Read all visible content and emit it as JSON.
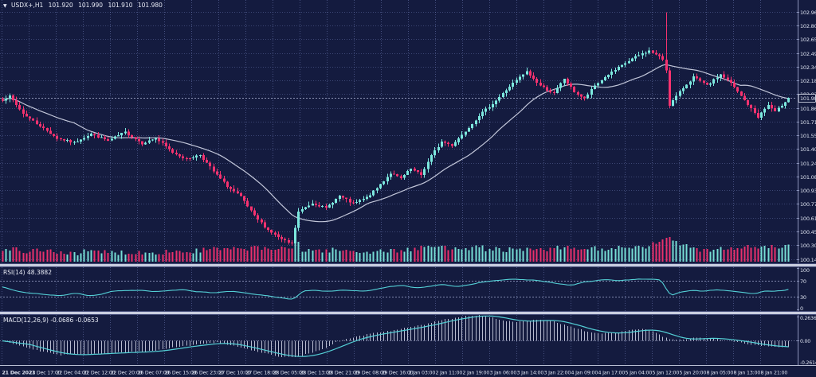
{
  "header": {
    "collapse_icon": "▼",
    "symbol": "USDX+,H1",
    "open": "101.920",
    "high": "101.990",
    "low": "101.910",
    "close": "101.980"
  },
  "panels": {
    "rsi": {
      "label": "RSI(14) 48.3882"
    },
    "macd": {
      "label": "MACD(12,26,9) -0.0686 -0.0653"
    }
  },
  "colors": {
    "background": "#141b3f",
    "grid": "#6e7ab4",
    "bull": "#7ce8de",
    "bear": "#f6326f",
    "ma_line": "#c2c6d9",
    "indicator_line": "#54d0d6",
    "histogram": "#c9cde0",
    "text": "#dde2f0",
    "axis_line": "#8a92b8",
    "level_line": "#9aa2c8",
    "bid_line": "#a9b0cf",
    "price_box_border": "#e8ecf8",
    "price_box_bg": "#141b3f"
  },
  "chart_data": [
    {
      "type": "candlestick",
      "name": "USDX+",
      "timeframe": "H1",
      "ohlc_last": {
        "open": 101.92,
        "high": 101.99,
        "low": 101.91,
        "close": 101.98
      },
      "current_price": 101.98,
      "current_price_label": "101.980",
      "ylim": [
        100.09,
        103.1
      ],
      "y_ticks": [
        "102.960",
        "102.805",
        "102.650",
        "102.495",
        "102.340",
        "102.180",
        "102.025",
        "101.865",
        "101.710",
        "101.555",
        "101.400",
        "101.240",
        "101.085",
        "100.930",
        "100.770",
        "100.610",
        "100.455",
        "100.300",
        "100.140"
      ],
      "x_labels": [
        "21 Dec 2023",
        "21 Dec 17:00",
        "22 Dec 04:00",
        "22 Dec 12:00",
        "22 Dec 20:00",
        "26 Dec 07:00",
        "26 Dec 15:00",
        "26 Dec 23:00",
        "27 Dec 10:00",
        "27 Dec 18:00",
        "28 Dec 05:00",
        "28 Dec 13:00",
        "28 Dec 21:00",
        "29 Dec 08:00",
        "29 Dec 16:00",
        "2 Jan 03:00",
        "2 Jan 11:00",
        "2 Jan 19:00",
        "3 Jan 06:00",
        "3 Jan 14:00",
        "3 Jan 22:00",
        "4 Jan 09:00",
        "4 Jan 17:00",
        "5 Jan 04:00",
        "5 Jan 12:00",
        "5 Jan 20:00",
        "8 Jan 05:00",
        "8 Jan 13:00",
        "8 Jan 21:00"
      ],
      "candles": 232,
      "ma_period": 22,
      "close_keypoints": [
        [
          0,
          101.96
        ],
        [
          2,
          102.0
        ],
        [
          6,
          101.8
        ],
        [
          11,
          101.66
        ],
        [
          16,
          101.52
        ],
        [
          21,
          101.47
        ],
        [
          26,
          101.57
        ],
        [
          31,
          101.49
        ],
        [
          36,
          101.59
        ],
        [
          41,
          101.46
        ],
        [
          45,
          101.52
        ],
        [
          50,
          101.36
        ],
        [
          54,
          101.28
        ],
        [
          58,
          101.33
        ],
        [
          62,
          101.14
        ],
        [
          66,
          100.97
        ],
        [
          70,
          100.85
        ],
        [
          74,
          100.63
        ],
        [
          78,
          100.47
        ],
        [
          82,
          100.36
        ],
        [
          85,
          100.31
        ],
        [
          87,
          100.68
        ],
        [
          91,
          100.78
        ],
        [
          95,
          100.72
        ],
        [
          99,
          100.86
        ],
        [
          103,
          100.77
        ],
        [
          107,
          100.84
        ],
        [
          110,
          100.95
        ],
        [
          114,
          101.12
        ],
        [
          117,
          101.06
        ],
        [
          120,
          101.17
        ],
        [
          123,
          101.1
        ],
        [
          126,
          101.32
        ],
        [
          129,
          101.48
        ],
        [
          132,
          101.44
        ],
        [
          136,
          101.6
        ],
        [
          140,
          101.78
        ],
        [
          145,
          101.95
        ],
        [
          150,
          102.15
        ],
        [
          154,
          102.28
        ],
        [
          158,
          102.12
        ],
        [
          162,
          102.03
        ],
        [
          165,
          102.2
        ],
        [
          168,
          102.05
        ],
        [
          171,
          101.97
        ],
        [
          174,
          102.12
        ],
        [
          178,
          102.25
        ],
        [
          182,
          102.35
        ],
        [
          186,
          102.45
        ],
        [
          190,
          102.52
        ],
        [
          193,
          102.45
        ],
        [
          194,
          102.42
        ],
        [
          195,
          102.3
        ],
        [
          196,
          101.9
        ],
        [
          199,
          102.05
        ],
        [
          203,
          102.22
        ],
        [
          207,
          102.12
        ],
        [
          211,
          102.25
        ],
        [
          214,
          102.15
        ],
        [
          217,
          102.0
        ],
        [
          222,
          101.76
        ],
        [
          225,
          101.9
        ],
        [
          227,
          101.82
        ],
        [
          229,
          101.9
        ],
        [
          231,
          101.98
        ]
      ],
      "spike": {
        "index": 195,
        "high": 102.96
      },
      "volume_profile_keypoints": [
        [
          0,
          0.35
        ],
        [
          40,
          0.25
        ],
        [
          80,
          0.5
        ],
        [
          110,
          0.3
        ],
        [
          132,
          0.6
        ],
        [
          150,
          0.35
        ],
        [
          165,
          0.45
        ],
        [
          185,
          0.5
        ],
        [
          196,
          1.0
        ],
        [
          205,
          0.45
        ],
        [
          215,
          0.5
        ],
        [
          231,
          0.55
        ]
      ]
    },
    {
      "type": "line",
      "name": "RSI(14)",
      "last_value": 48.3882,
      "levels": [
        70,
        30
      ],
      "y_ticks": [
        "100",
        "70",
        "30",
        "0"
      ],
      "ylim": [
        0,
        100
      ],
      "keypoints": [
        [
          0,
          55
        ],
        [
          4,
          46
        ],
        [
          8,
          39
        ],
        [
          13,
          36
        ],
        [
          17,
          33
        ],
        [
          22,
          40
        ],
        [
          25,
          33
        ],
        [
          29,
          37
        ],
        [
          33,
          45
        ],
        [
          37,
          46
        ],
        [
          41,
          47
        ],
        [
          45,
          43
        ],
        [
          49,
          46
        ],
        [
          52,
          48
        ],
        [
          56,
          44
        ],
        [
          60,
          42
        ],
        [
          63,
          40
        ],
        [
          67,
          44
        ],
        [
          70,
          41
        ],
        [
          74,
          36
        ],
        [
          78,
          33
        ],
        [
          81,
          29
        ],
        [
          84,
          26
        ],
        [
          86,
          25
        ],
        [
          88,
          44
        ],
        [
          92,
          46
        ],
        [
          96,
          44
        ],
        [
          100,
          47
        ],
        [
          104,
          44
        ],
        [
          108,
          46
        ],
        [
          111,
          50
        ],
        [
          115,
          56
        ],
        [
          118,
          58
        ],
        [
          122,
          52
        ],
        [
          126,
          57
        ],
        [
          129,
          60
        ],
        [
          133,
          55
        ],
        [
          137,
          59
        ],
        [
          141,
          66
        ],
        [
          146,
          70
        ],
        [
          149,
          73
        ],
        [
          153,
          72
        ],
        [
          157,
          70
        ],
        [
          160,
          66
        ],
        [
          164,
          62
        ],
        [
          167,
          58
        ],
        [
          171,
          66
        ],
        [
          175,
          70
        ],
        [
          179,
          72
        ],
        [
          181,
          69
        ],
        [
          184,
          72
        ],
        [
          188,
          73
        ],
        [
          192,
          73
        ],
        [
          194,
          71
        ],
        [
          196,
          32
        ],
        [
          199,
          41
        ],
        [
          203,
          46
        ],
        [
          206,
          44
        ],
        [
          210,
          48
        ],
        [
          213,
          46
        ],
        [
          217,
          42
        ],
        [
          221,
          38
        ],
        [
          224,
          45
        ],
        [
          226,
          42
        ],
        [
          229,
          45
        ],
        [
          231,
          48
        ]
      ]
    },
    {
      "type": "macd",
      "name": "MACD(12,26,9)",
      "last_macd": -0.0686,
      "last_signal": -0.0653,
      "signal_period": 9,
      "y_ticks": [
        "0.2636",
        "0.00",
        "-0.2614"
      ],
      "ylim": [
        -0.265,
        0.282
      ],
      "keypoints": [
        [
          0,
          0.0
        ],
        [
          4,
          -0.04
        ],
        [
          9,
          -0.09
        ],
        [
          13,
          -0.13
        ],
        [
          17,
          -0.155
        ],
        [
          22,
          -0.15
        ],
        [
          27,
          -0.14
        ],
        [
          32,
          -0.13
        ],
        [
          37,
          -0.125
        ],
        [
          42,
          -0.115
        ],
        [
          46,
          -0.1
        ],
        [
          50,
          -0.07
        ],
        [
          55,
          -0.05
        ],
        [
          59,
          -0.03
        ],
        [
          63,
          -0.02
        ],
        [
          67,
          -0.05
        ],
        [
          72,
          -0.09
        ],
        [
          76,
          -0.13
        ],
        [
          81,
          -0.17
        ],
        [
          86,
          -0.18
        ],
        [
          90,
          -0.14
        ],
        [
          95,
          -0.08
        ],
        [
          98,
          -0.02
        ],
        [
          102,
          0.03
        ],
        [
          106,
          0.06
        ],
        [
          110,
          0.09
        ],
        [
          114,
          0.11
        ],
        [
          118,
          0.14
        ],
        [
          123,
          0.17
        ],
        [
          127,
          0.21
        ],
        [
          131,
          0.24
        ],
        [
          136,
          0.27
        ],
        [
          140,
          0.28
        ],
        [
          143,
          0.26
        ],
        [
          147,
          0.22
        ],
        [
          151,
          0.21
        ],
        [
          155,
          0.22
        ],
        [
          158,
          0.23
        ],
        [
          162,
          0.21
        ],
        [
          166,
          0.16
        ],
        [
          170,
          0.12
        ],
        [
          173,
          0.09
        ],
        [
          177,
          0.08
        ],
        [
          181,
          0.09
        ],
        [
          185,
          0.12
        ],
        [
          188,
          0.13
        ],
        [
          191,
          0.1
        ],
        [
          194,
          0.05
        ],
        [
          196,
          0.02
        ],
        [
          199,
          0.01
        ],
        [
          203,
          0.03
        ],
        [
          207,
          0.03
        ],
        [
          211,
          0.01
        ],
        [
          214,
          0.0
        ],
        [
          217,
          -0.02
        ],
        [
          221,
          -0.05
        ],
        [
          225,
          -0.06
        ],
        [
          228,
          -0.068
        ],
        [
          231,
          -0.0686
        ]
      ]
    }
  ]
}
